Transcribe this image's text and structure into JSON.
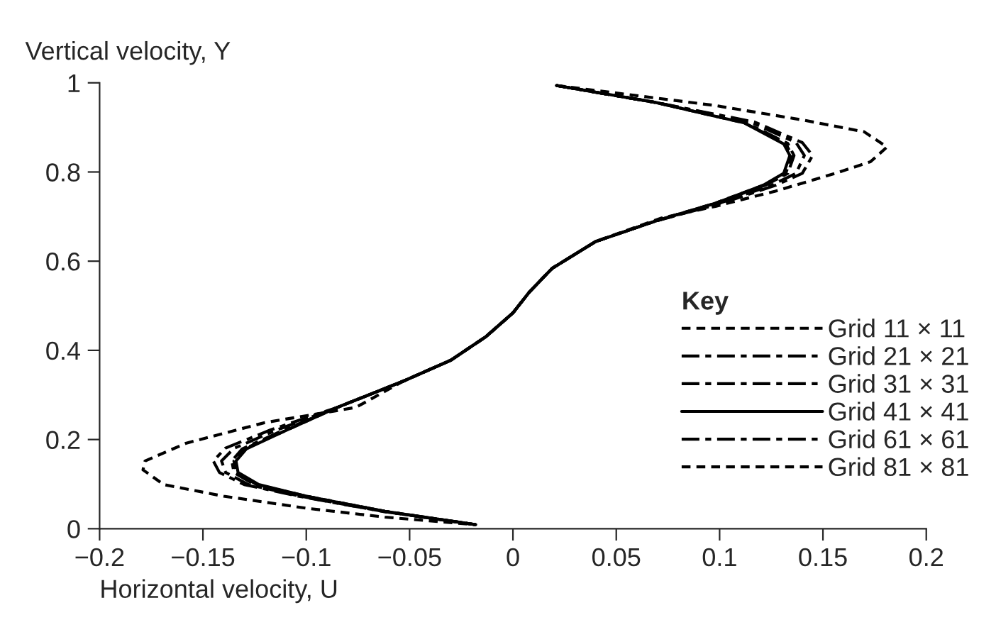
{
  "chart_data": {
    "type": "line",
    "xlabel": "Horizontal velocity, U",
    "ylabel": "Vertical velocity, Y",
    "legend_title": "Key",
    "legend": "right",
    "grid": false,
    "xlim": [
      -0.2,
      0.2
    ],
    "xticks": [
      {
        "value": -0.2,
        "label": "−0.2"
      },
      {
        "value": -0.15,
        "label": "−0.15"
      },
      {
        "value": -0.1,
        "label": "−0.1"
      },
      {
        "value": -0.05,
        "label": "−0.05"
      },
      0,
      0.05,
      0.1,
      0.15,
      0.2
    ],
    "ylim": [
      0,
      1
    ],
    "yticks": [
      0,
      0.2,
      0.4,
      0.6,
      0.8,
      1
    ],
    "series": [
      {
        "name": "Grid 11 × 11",
        "color": "#000000",
        "line_style": "dotted",
        "x": [
          0.021,
          0.098,
          0.141,
          0.17,
          0.181,
          0.173,
          0.156,
          0.127,
          0.098,
          0.072,
          0.04,
          0.019,
          0.008,
          0,
          -0.013,
          -0.03,
          -0.053,
          -0.076,
          -0.12,
          -0.158,
          -0.178,
          -0.179,
          -0.169,
          -0.14,
          -0.1,
          -0.062,
          -0.018
        ],
        "values": [
          0.994,
          0.949,
          0.916,
          0.89,
          0.856,
          0.823,
          0.797,
          0.757,
          0.723,
          0.697,
          0.644,
          0.584,
          0.531,
          0.484,
          0.431,
          0.378,
          0.331,
          0.272,
          0.238,
          0.192,
          0.152,
          0.132,
          0.099,
          0.073,
          0.046,
          0.026,
          0.009
        ]
      },
      {
        "name": "Grid 21 × 21",
        "color": "#000000",
        "line_style": "dashdot",
        "x": [
          0.021,
          0.069,
          0.115,
          0.137,
          0.141,
          0.137,
          0.125,
          0.1,
          0.069,
          0.04,
          0.019,
          0.008,
          0,
          -0.013,
          -0.03,
          -0.053,
          -0.085,
          -0.115,
          -0.135,
          -0.141,
          -0.139,
          -0.128,
          -0.103,
          -0.063,
          -0.018
        ],
        "values": [
          0.994,
          0.956,
          0.912,
          0.866,
          0.837,
          0.797,
          0.77,
          0.73,
          0.69,
          0.644,
          0.584,
          0.531,
          0.484,
          0.431,
          0.378,
          0.331,
          0.272,
          0.22,
          0.18,
          0.152,
          0.126,
          0.099,
          0.073,
          0.039,
          0.009
        ]
      },
      {
        "name": "Grid 31 × 31",
        "color": "#000000",
        "line_style": "dashdot",
        "x": [
          0.021,
          0.069,
          0.113,
          0.133,
          0.136,
          0.133,
          0.122,
          0.098,
          0.069,
          0.04,
          0.019,
          0.008,
          0,
          -0.013,
          -0.03,
          -0.053,
          -0.085,
          -0.112,
          -0.131,
          -0.136,
          -0.135,
          -0.125,
          -0.1,
          -0.062,
          -0.018
        ],
        "values": [
          0.994,
          0.956,
          0.91,
          0.864,
          0.837,
          0.797,
          0.77,
          0.73,
          0.69,
          0.644,
          0.584,
          0.531,
          0.484,
          0.431,
          0.378,
          0.331,
          0.272,
          0.219,
          0.179,
          0.152,
          0.126,
          0.099,
          0.073,
          0.039,
          0.009
        ]
      },
      {
        "name": "Grid 41 × 41",
        "color": "#000000",
        "line_style": "solid",
        "x": [
          0.021,
          0.069,
          0.112,
          0.131,
          0.134,
          0.131,
          0.121,
          0.098,
          0.069,
          0.04,
          0.019,
          0.008,
          0,
          -0.013,
          -0.03,
          -0.053,
          -0.085,
          -0.111,
          -0.129,
          -0.134,
          -0.133,
          -0.123,
          -0.1,
          -0.062,
          -0.018
        ],
        "values": [
          0.994,
          0.956,
          0.91,
          0.863,
          0.837,
          0.797,
          0.77,
          0.73,
          0.69,
          0.644,
          0.584,
          0.531,
          0.484,
          0.431,
          0.378,
          0.331,
          0.272,
          0.218,
          0.179,
          0.152,
          0.126,
          0.099,
          0.073,
          0.039,
          0.009
        ]
      },
      {
        "name": "Grid 61 × 61",
        "color": "#000000",
        "line_style": "dashdot",
        "x": [
          0.021,
          0.069,
          0.117,
          0.14,
          0.145,
          0.14,
          0.127,
          0.101,
          0.069,
          0.04,
          0.019,
          0.008,
          0,
          -0.013,
          -0.03,
          -0.053,
          -0.085,
          -0.117,
          -0.139,
          -0.145,
          -0.142,
          -0.13,
          -0.104,
          -0.063,
          -0.018
        ],
        "values": [
          0.994,
          0.956,
          0.912,
          0.866,
          0.837,
          0.797,
          0.77,
          0.73,
          0.69,
          0.644,
          0.584,
          0.531,
          0.484,
          0.431,
          0.378,
          0.331,
          0.272,
          0.222,
          0.181,
          0.152,
          0.126,
          0.099,
          0.073,
          0.039,
          0.009
        ]
      },
      {
        "name": "Grid 81 × 81",
        "color": "#000000",
        "line_style": "dotted",
        "x": [
          0.021,
          0.069,
          0.112,
          0.132,
          0.135,
          0.132,
          0.121,
          0.098,
          0.069,
          0.04,
          0.019,
          0.008,
          0,
          -0.013,
          -0.03,
          -0.053,
          -0.085,
          -0.111,
          -0.13,
          -0.135,
          -0.134,
          -0.124,
          -0.1,
          -0.062,
          -0.018
        ],
        "values": [
          0.994,
          0.956,
          0.91,
          0.864,
          0.837,
          0.797,
          0.77,
          0.73,
          0.69,
          0.644,
          0.584,
          0.531,
          0.484,
          0.431,
          0.378,
          0.331,
          0.272,
          0.218,
          0.179,
          0.152,
          0.126,
          0.099,
          0.073,
          0.039,
          0.009
        ]
      }
    ]
  }
}
